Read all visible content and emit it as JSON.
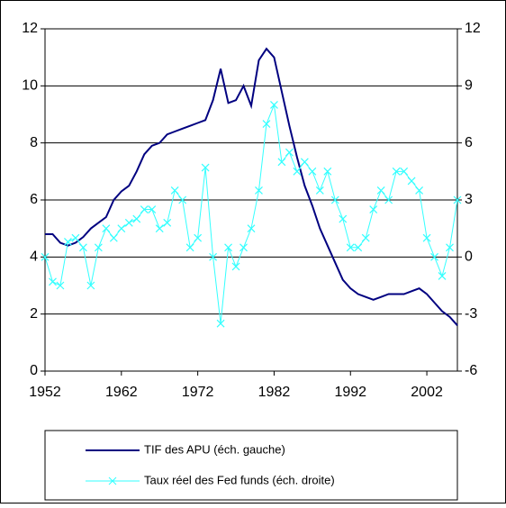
{
  "chart_data": {
    "type": "line",
    "x": [
      1952,
      1953,
      1954,
      1955,
      1956,
      1957,
      1958,
      1959,
      1960,
      1961,
      1962,
      1963,
      1964,
      1965,
      1966,
      1967,
      1968,
      1969,
      1970,
      1971,
      1972,
      1973,
      1974,
      1975,
      1976,
      1977,
      1978,
      1979,
      1980,
      1981,
      1982,
      1983,
      1984,
      1985,
      1986,
      1987,
      1988,
      1989,
      1990,
      1991,
      1992,
      1993,
      1994,
      1995,
      1996,
      1997,
      1998,
      1999,
      2000,
      2001,
      2002,
      2003,
      2004,
      2005,
      2006
    ],
    "series": [
      {
        "name": "TIF des APU (éch. gauche)",
        "color": "#000080",
        "axis": "y",
        "values": [
          4.8,
          4.8,
          4.5,
          4.4,
          4.5,
          4.7,
          5.0,
          5.2,
          5.4,
          6.0,
          6.3,
          6.5,
          7.0,
          7.6,
          7.9,
          8.0,
          8.3,
          8.4,
          8.5,
          8.6,
          8.7,
          8.8,
          9.5,
          10.6,
          9.4,
          9.5,
          10.0,
          9.3,
          10.9,
          11.3,
          11.0,
          9.8,
          8.6,
          7.5,
          6.5,
          5.8,
          5.0,
          4.4,
          3.8,
          3.2,
          2.9,
          2.7,
          2.6,
          2.5,
          2.6,
          2.7,
          2.7,
          2.7,
          2.8,
          2.9,
          2.7,
          2.4,
          2.1,
          1.9,
          1.6
        ]
      },
      {
        "name": "Taux réel des Fed funds (éch. droite)",
        "color": "#33ffff",
        "axis": "y2",
        "values": [
          0,
          -1.3,
          -1.5,
          0.8,
          1,
          0.5,
          -1.5,
          0.5,
          1.5,
          1,
          1.5,
          1.8,
          2.0,
          2.5,
          2.5,
          1.5,
          1.8,
          3.5,
          3.0,
          0.5,
          1.0,
          4.7,
          0,
          -3.5,
          0.5,
          -0.5,
          0.5,
          1.5,
          3.5,
          7,
          8,
          5,
          5.5,
          4.5,
          5,
          4.5,
          3.5,
          4.5,
          3.0,
          2.0,
          0.5,
          0.5,
          1.0,
          2.5,
          3.5,
          3.0,
          4.5,
          4.5,
          4,
          3.5,
          1.0,
          0,
          -1.0,
          0.5,
          3.0
        ]
      }
    ],
    "xlim": [
      1952,
      2006
    ],
    "xticks": [
      1952,
      1962,
      1972,
      1982,
      1992,
      2002
    ],
    "ylim": [
      0,
      12
    ],
    "yticks": [
      0,
      2,
      4,
      6,
      8,
      10,
      12
    ],
    "y2lim": [
      -6,
      12
    ],
    "y2ticks": [
      -6,
      -3,
      0,
      3,
      6,
      9,
      12
    ],
    "grid": true
  }
}
